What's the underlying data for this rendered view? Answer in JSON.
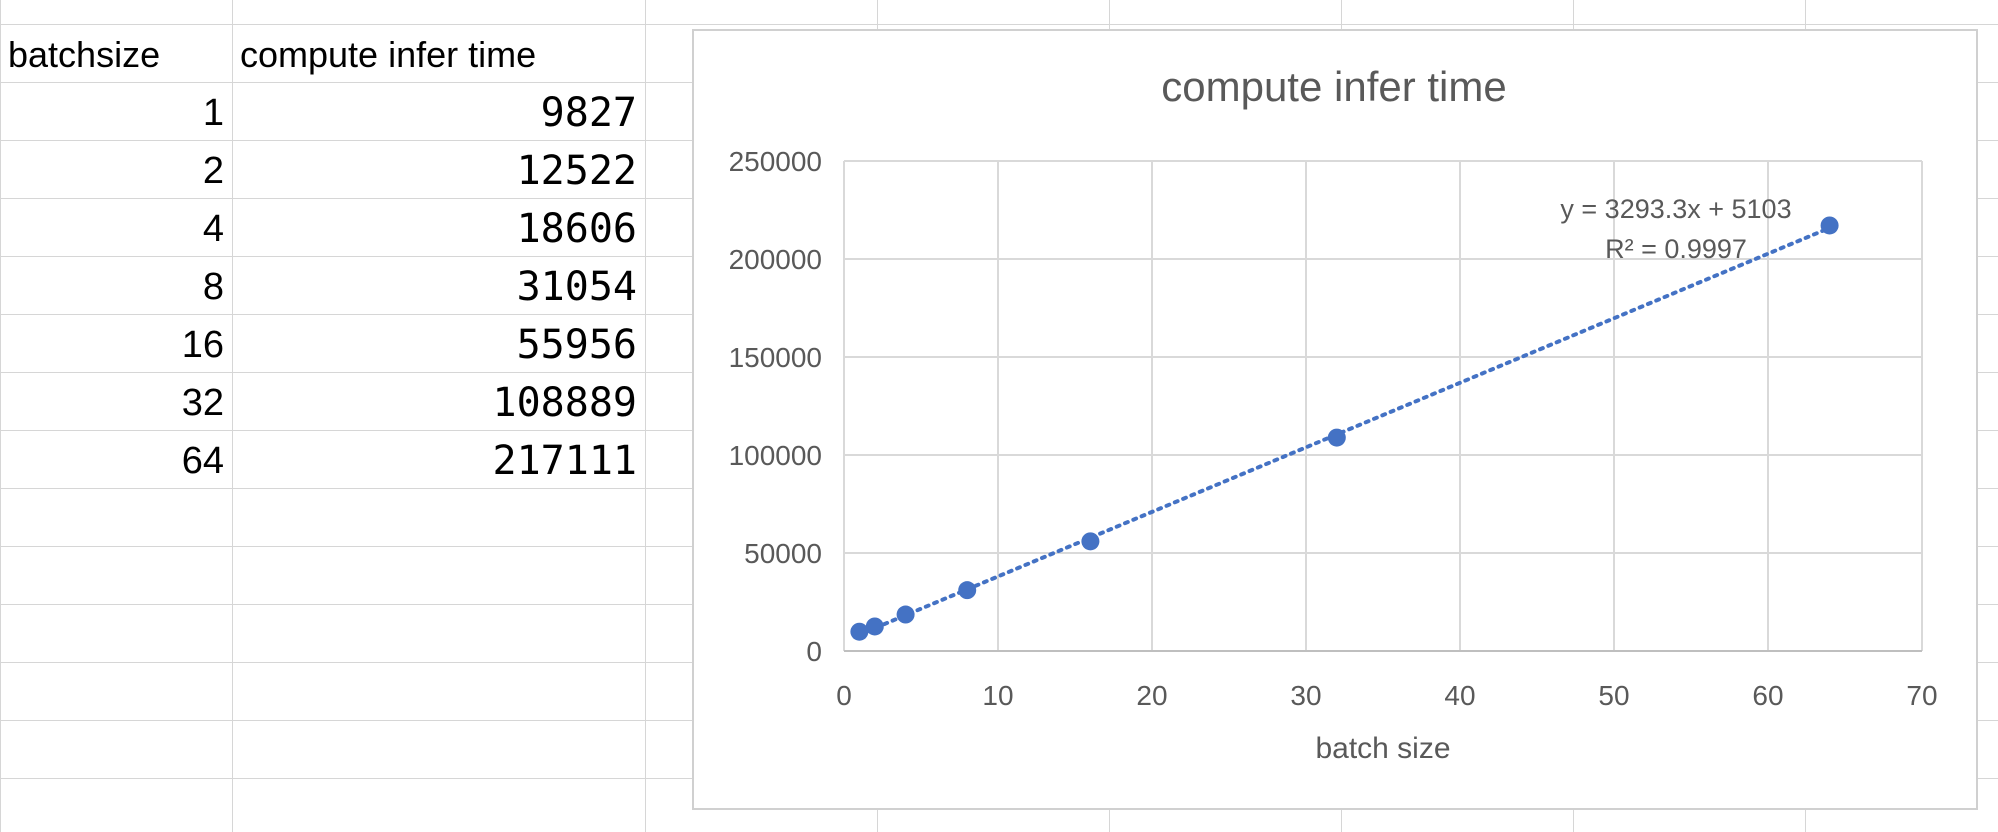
{
  "sheet": {
    "headers": {
      "batch": "batchsize",
      "time": "compute infer time"
    },
    "rows": [
      {
        "batch": "1",
        "time": "9827"
      },
      {
        "batch": "2",
        "time": "12522"
      },
      {
        "batch": "4",
        "time": "18606"
      },
      {
        "batch": "8",
        "time": "31054"
      },
      {
        "batch": "16",
        "time": "55956"
      },
      {
        "batch": "32",
        "time": "108889"
      },
      {
        "batch": "64",
        "time": "217111"
      }
    ]
  },
  "chart_data": {
    "type": "scatter",
    "title": "compute infer time",
    "xlabel": "batch size",
    "ylabel": "",
    "xlim": [
      0,
      70
    ],
    "ylim": [
      0,
      250000
    ],
    "xticks": [
      "0",
      "10",
      "20",
      "30",
      "40",
      "50",
      "60",
      "70"
    ],
    "yticks": [
      "0",
      "50000",
      "100000",
      "150000",
      "200000",
      "250000"
    ],
    "grid": true,
    "series": [
      {
        "x": [
          1,
          2,
          4,
          8,
          16,
          32,
          64
        ],
        "y": [
          9827,
          12522,
          18606,
          31054,
          55956,
          108889,
          217111
        ],
        "color": "#4472C4"
      }
    ],
    "trendline": {
      "type": "linear",
      "slope": 3293.3,
      "intercept": 5103,
      "x_range": [
        1,
        64
      ],
      "style": "dotted",
      "color": "#4472C4",
      "equation": "y = 3293.3x + 5103",
      "r_squared": "R² = 0.9997"
    }
  }
}
